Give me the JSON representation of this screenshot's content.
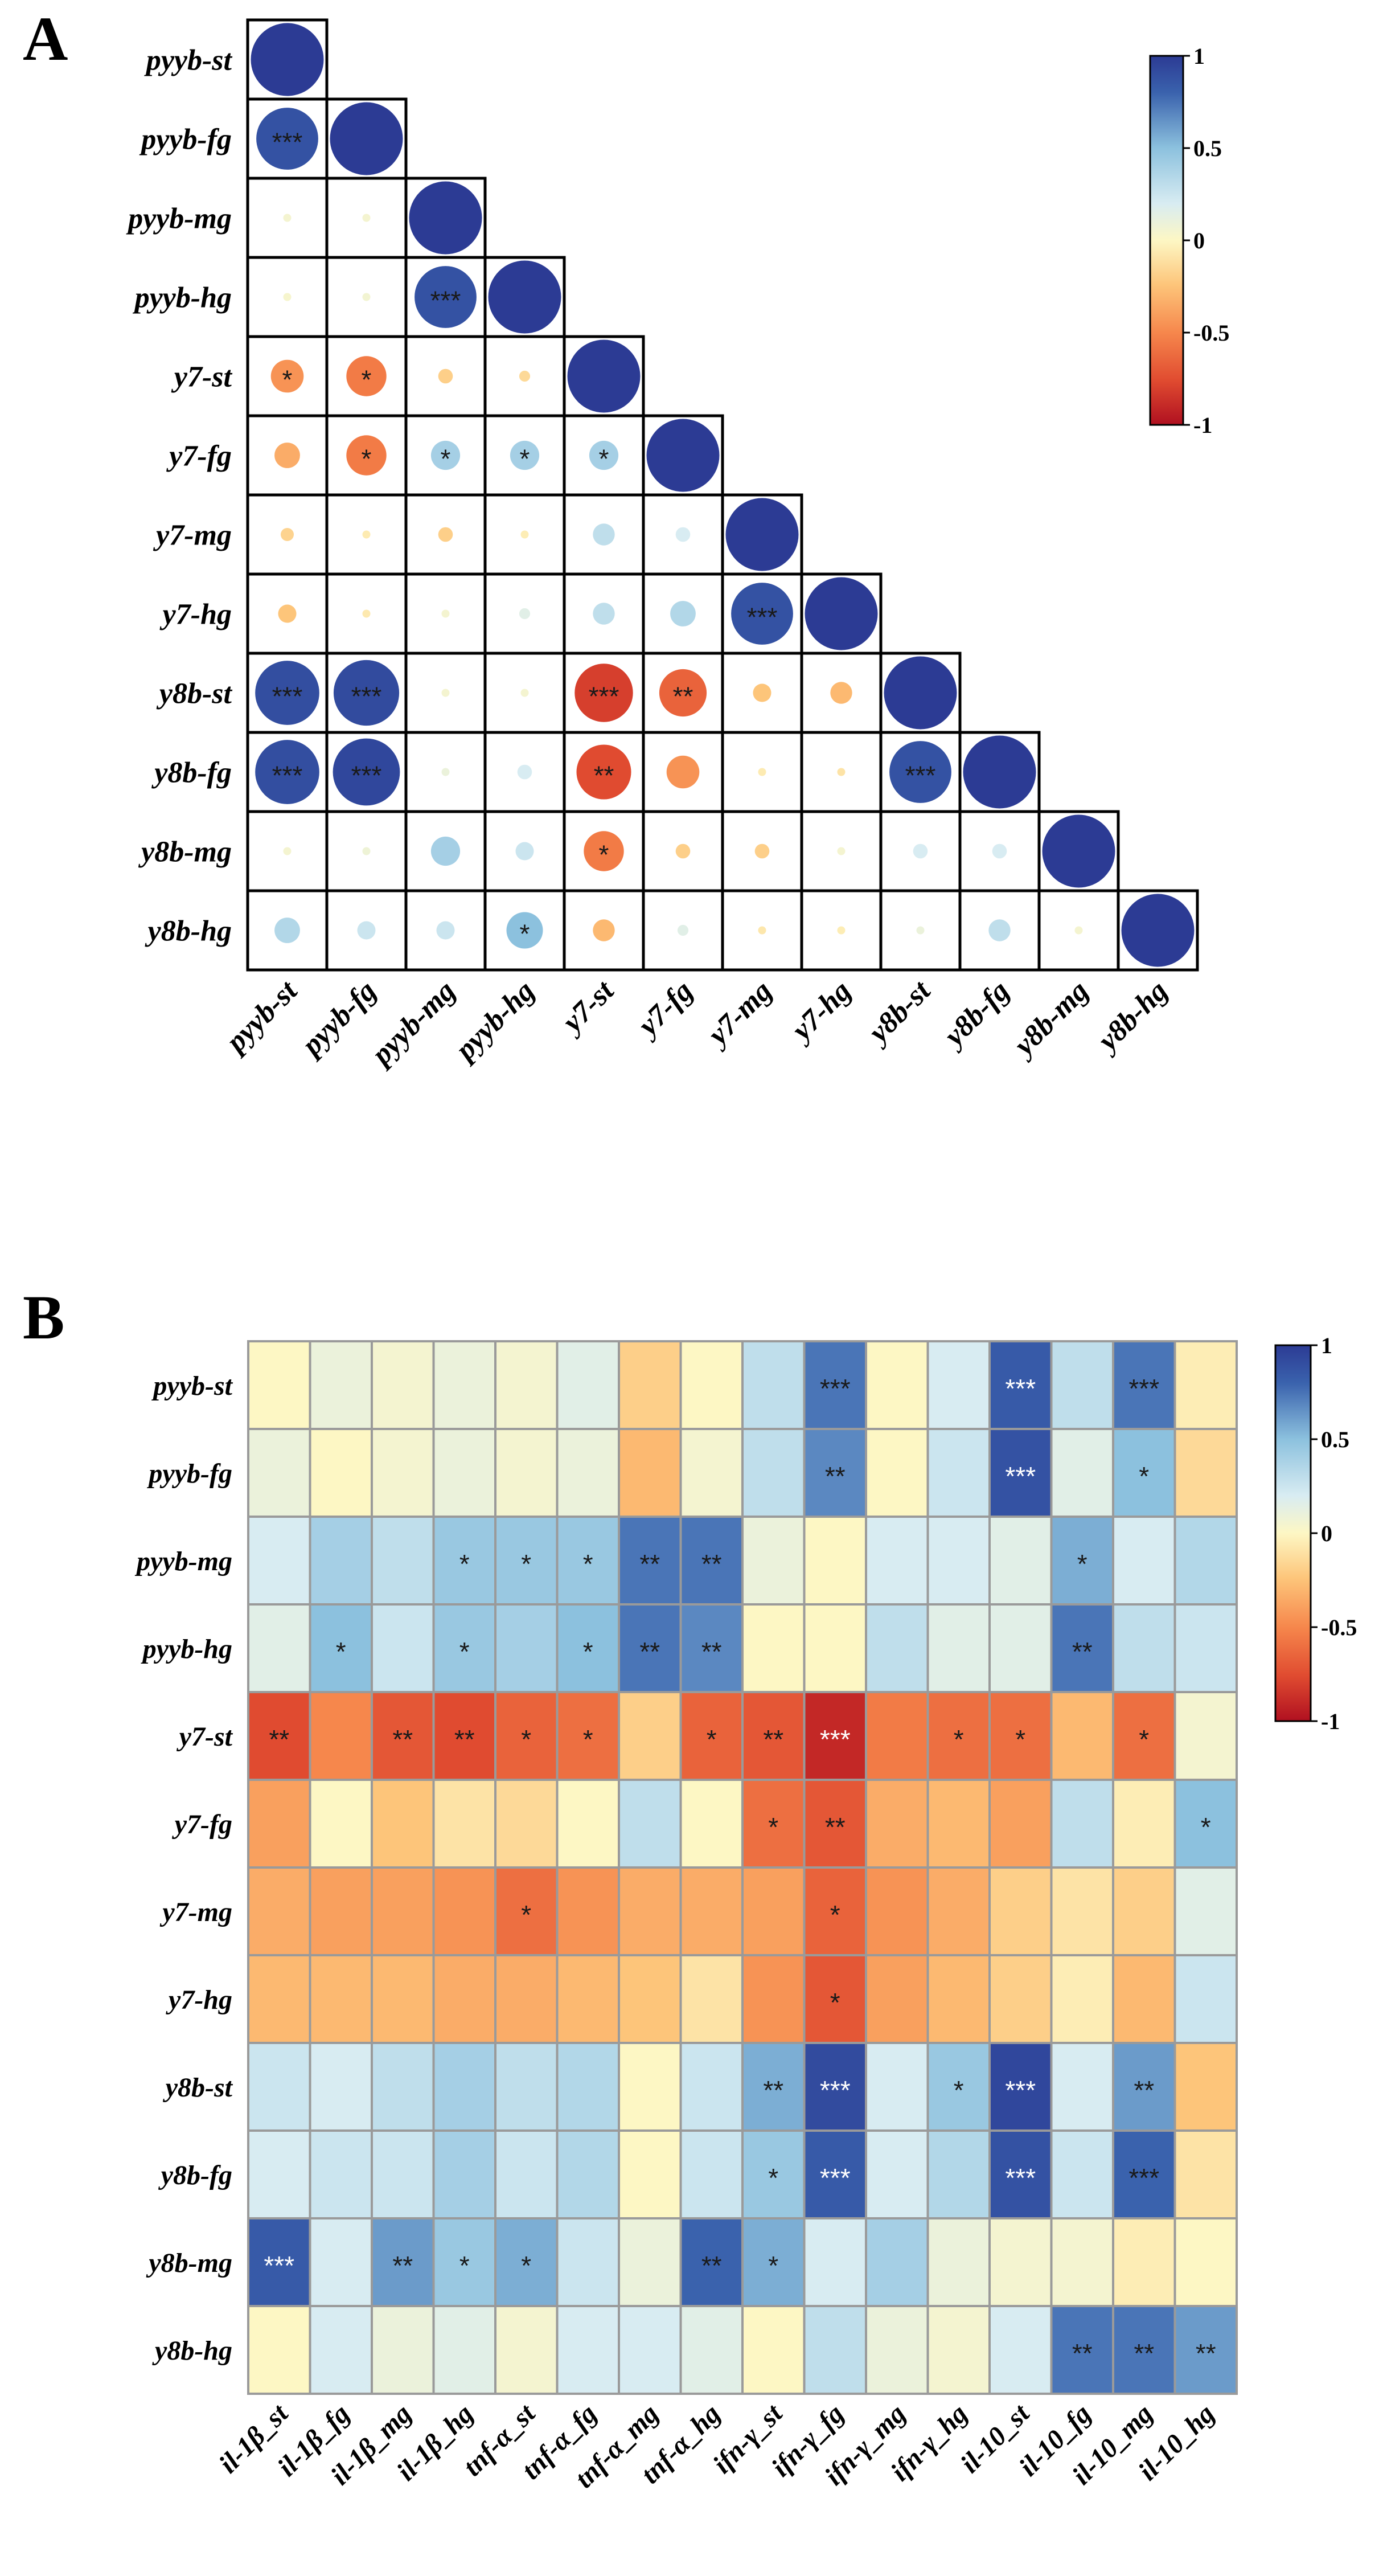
{
  "panels": {
    "a": "A",
    "b": "B"
  },
  "colors": {
    "pos_strong": "#2c3b94",
    "neg_strong": "#c0141f",
    "neutral": "#fdf7c4",
    "gridA": "#000000",
    "gridB": "#9a9a9a"
  },
  "chart_data": [
    {
      "type": "heatmap",
      "subtype": "lower-triangle circle correlation matrix",
      "labels": [
        "pyyb-st",
        "pyyb-fg",
        "pyyb-mg",
        "pyyb-hg",
        "y7-st",
        "y7-fg",
        "y7-mg",
        "y7-hg",
        "y8b-st",
        "y8b-fg",
        "y8b-mg",
        "y8b-hg"
      ],
      "scale": {
        "min": -1,
        "max": 1,
        "ticks": [
          "1",
          "0.5",
          "0",
          "-0.5",
          "-1"
        ]
      },
      "values": [
        [
          1
        ],
        [
          0.85,
          1
        ],
        [
          0.05,
          0.05,
          1
        ],
        [
          0.04,
          0.06,
          0.85,
          1
        ],
        [
          -0.45,
          -0.55,
          -0.2,
          -0.15,
          1
        ],
        [
          -0.35,
          -0.55,
          0.4,
          0.4,
          0.4,
          1
        ],
        [
          -0.18,
          -0.06,
          -0.2,
          -0.05,
          0.3,
          0.2,
          1
        ],
        [
          -0.25,
          -0.07,
          0.05,
          0.15,
          0.3,
          0.35,
          0.85,
          1
        ],
        [
          0.88,
          0.9,
          0.05,
          0.05,
          -0.8,
          -0.65,
          -0.25,
          -0.3,
          1
        ],
        [
          0.88,
          0.92,
          0.1,
          0.2,
          -0.75,
          -0.45,
          -0.06,
          -0.1,
          0.85,
          1
        ],
        [
          0.05,
          0.08,
          0.4,
          0.25,
          -0.55,
          -0.2,
          -0.2,
          0.05,
          0.2,
          0.2,
          1
        ],
        [
          0.35,
          0.25,
          0.25,
          0.5,
          -0.3,
          0.15,
          -0.08,
          -0.05,
          0.1,
          0.3,
          0.05,
          1
        ]
      ],
      "significance": [
        [
          ""
        ],
        [
          "***",
          ""
        ],
        [
          "",
          "",
          ""
        ],
        [
          "",
          "",
          "***",
          ""
        ],
        [
          "*",
          "*",
          "",
          "",
          ""
        ],
        [
          "",
          "*",
          "*",
          "*",
          "*",
          ""
        ],
        [
          "",
          "",
          "",
          "",
          "",
          "",
          ""
        ],
        [
          "",
          "",
          "",
          "",
          "",
          "",
          "***",
          ""
        ],
        [
          "***",
          "***",
          "",
          "",
          "***",
          "**",
          "",
          "",
          ""
        ],
        [
          "***",
          "***",
          "",
          "",
          "**",
          "",
          "",
          "",
          "***",
          ""
        ],
        [
          "",
          "",
          "",
          "",
          "*",
          "",
          "",
          "",
          "",
          "",
          ""
        ],
        [
          "",
          "",
          "",
          "*",
          "",
          "",
          "",
          "",
          "",
          "",
          "",
          ""
        ]
      ]
    },
    {
      "type": "heatmap",
      "rows": [
        "pyyb-st",
        "pyyb-fg",
        "pyyb-mg",
        "pyyb-hg",
        "y7-st",
        "y7-fg",
        "y7-mg",
        "y7-hg",
        "y8b-st",
        "y8b-fg",
        "y8b-mg",
        "y8b-hg"
      ],
      "columns": [
        "il-1β_st",
        "il-1β_fg",
        "il-1β_mg",
        "il-1β_hg",
        "tnf-α_st",
        "tnf-α_fg",
        "tnf-α_mg",
        "tnf-α_hg",
        "ifn-γ_st",
        "ifn-γ_fg",
        "ifn-γ_mg",
        "ifn-γ_hg",
        "il-10_st",
        "il-10_fg",
        "il-10_mg",
        "il-10_hg"
      ],
      "scale": {
        "min": -1,
        "max": 1,
        "ticks": [
          "1",
          "0.5",
          "0",
          "-0.5",
          "-1"
        ]
      },
      "values": [
        [
          0.0,
          0.1,
          0.05,
          0.1,
          0.05,
          0.15,
          -0.2,
          0.0,
          0.3,
          0.7,
          0.0,
          0.2,
          0.8,
          0.3,
          0.7,
          -0.05
        ],
        [
          0.1,
          0.0,
          0.05,
          0.1,
          0.05,
          0.1,
          -0.3,
          0.05,
          0.3,
          0.65,
          0.0,
          0.25,
          0.85,
          0.15,
          0.5,
          -0.15
        ],
        [
          0.2,
          0.4,
          0.3,
          0.45,
          0.45,
          0.45,
          0.7,
          0.7,
          0.1,
          0.0,
          0.2,
          0.2,
          0.15,
          0.55,
          0.2,
          0.35
        ],
        [
          0.15,
          0.5,
          0.25,
          0.45,
          0.4,
          0.5,
          0.7,
          0.65,
          0.0,
          0.0,
          0.3,
          0.15,
          0.15,
          0.7,
          0.3,
          0.25
        ],
        [
          -0.75,
          -0.5,
          -0.7,
          -0.75,
          -0.65,
          -0.6,
          -0.2,
          -0.65,
          -0.7,
          -0.9,
          -0.55,
          -0.6,
          -0.6,
          -0.3,
          -0.6,
          0.05
        ],
        [
          -0.4,
          0.0,
          -0.25,
          -0.1,
          -0.15,
          0.0,
          0.3,
          0.0,
          -0.6,
          -0.7,
          -0.35,
          -0.3,
          -0.4,
          0.3,
          -0.05,
          0.5
        ],
        [
          -0.35,
          -0.4,
          -0.4,
          -0.45,
          -0.6,
          -0.45,
          -0.35,
          -0.35,
          -0.4,
          -0.65,
          -0.45,
          -0.35,
          -0.2,
          -0.1,
          -0.2,
          0.15
        ],
        [
          -0.3,
          -0.3,
          -0.3,
          -0.35,
          -0.35,
          -0.3,
          -0.25,
          -0.1,
          -0.45,
          -0.7,
          -0.4,
          -0.3,
          -0.2,
          -0.05,
          -0.3,
          0.25
        ],
        [
          0.25,
          0.2,
          0.3,
          0.4,
          0.3,
          0.35,
          0.0,
          0.25,
          0.55,
          0.9,
          0.2,
          0.45,
          0.92,
          0.2,
          0.6,
          -0.25
        ],
        [
          0.2,
          0.25,
          0.25,
          0.4,
          0.25,
          0.35,
          0.0,
          0.25,
          0.45,
          0.8,
          0.2,
          0.35,
          0.85,
          0.25,
          0.75,
          -0.1
        ],
        [
          0.8,
          0.2,
          0.6,
          0.45,
          0.55,
          0.25,
          0.1,
          0.75,
          0.55,
          0.2,
          0.4,
          0.1,
          0.05,
          0.05,
          -0.05,
          0.0
        ],
        [
          0.0,
          0.2,
          0.1,
          0.15,
          0.05,
          0.2,
          0.2,
          0.15,
          0.0,
          0.3,
          0.1,
          0.05,
          0.2,
          0.7,
          0.7,
          0.6
        ]
      ],
      "significance": [
        [
          "",
          "",
          "",
          "",
          "",
          "",
          "",
          "",
          "",
          "***",
          "",
          "",
          "***",
          "",
          "***",
          ""
        ],
        [
          "",
          "",
          "",
          "",
          "",
          "",
          "",
          "",
          "",
          "**",
          "",
          "",
          "***",
          "",
          "*",
          ""
        ],
        [
          "",
          "",
          "",
          "*",
          "*",
          "*",
          "**",
          "**",
          "",
          "",
          "",
          "",
          "",
          "*",
          "",
          ""
        ],
        [
          "",
          "*",
          "",
          "*",
          "",
          "*",
          "**",
          "**",
          "",
          "",
          "",
          "",
          "",
          "**",
          "",
          ""
        ],
        [
          "**",
          "",
          "**",
          "**",
          "*",
          "*",
          "",
          "*",
          "**",
          "***",
          "",
          "*",
          "*",
          "",
          "*",
          ""
        ],
        [
          "",
          "",
          "",
          "",
          "",
          "",
          "",
          "",
          "*",
          "**",
          "",
          "",
          "",
          "",
          "",
          "*"
        ],
        [
          "",
          "",
          "",
          "",
          "*",
          "",
          "",
          "",
          "",
          "*",
          "",
          "",
          "",
          "",
          "",
          ""
        ],
        [
          "",
          "",
          "",
          "",
          "",
          "",
          "",
          "",
          "",
          "*",
          "",
          "",
          "",
          "",
          "",
          ""
        ],
        [
          "",
          "",
          "",
          "",
          "",
          "",
          "",
          "",
          "**",
          "***",
          "",
          "*",
          "***",
          "",
          "**",
          ""
        ],
        [
          "",
          "",
          "",
          "",
          "",
          "",
          "",
          "",
          "*",
          "***",
          "",
          "",
          "***",
          "",
          "***",
          ""
        ],
        [
          "***",
          "",
          "**",
          "*",
          "*",
          "",
          "",
          "**",
          "*",
          "",
          "",
          "",
          "",
          "",
          "",
          ""
        ],
        [
          "",
          "",
          "",
          "",
          "",
          "",
          "",
          "",
          "",
          "",
          "",
          "",
          "",
          "**",
          "**",
          "**"
        ]
      ]
    }
  ]
}
